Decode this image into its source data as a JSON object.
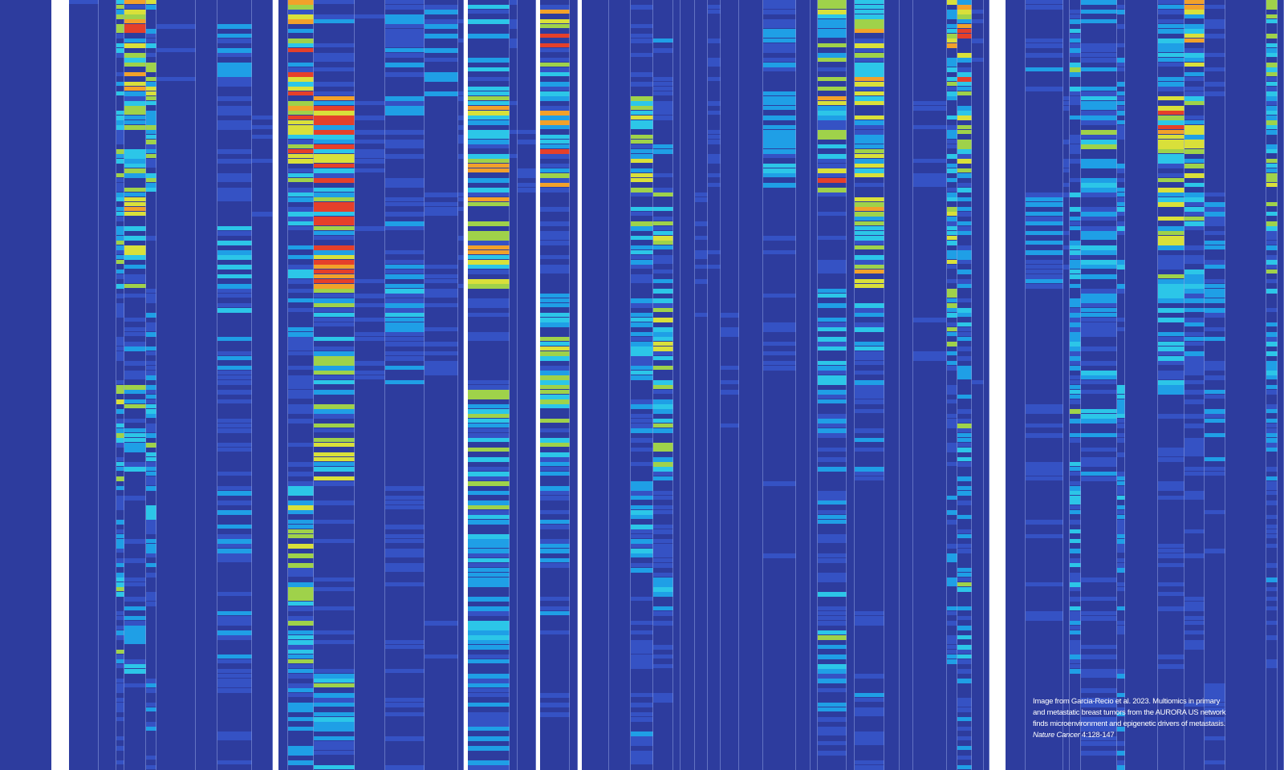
{
  "caption": {
    "lines": [
      "Image from Garcia-Recio et al. 2023. Multiomics in primary",
      "and metastatic breast tumors from the AURORA US network",
      "finds microenvironment and epigenetic drivers of metastasis."
    ],
    "journal": "Nature Cancer",
    "citation": "4:128-147"
  }
}
